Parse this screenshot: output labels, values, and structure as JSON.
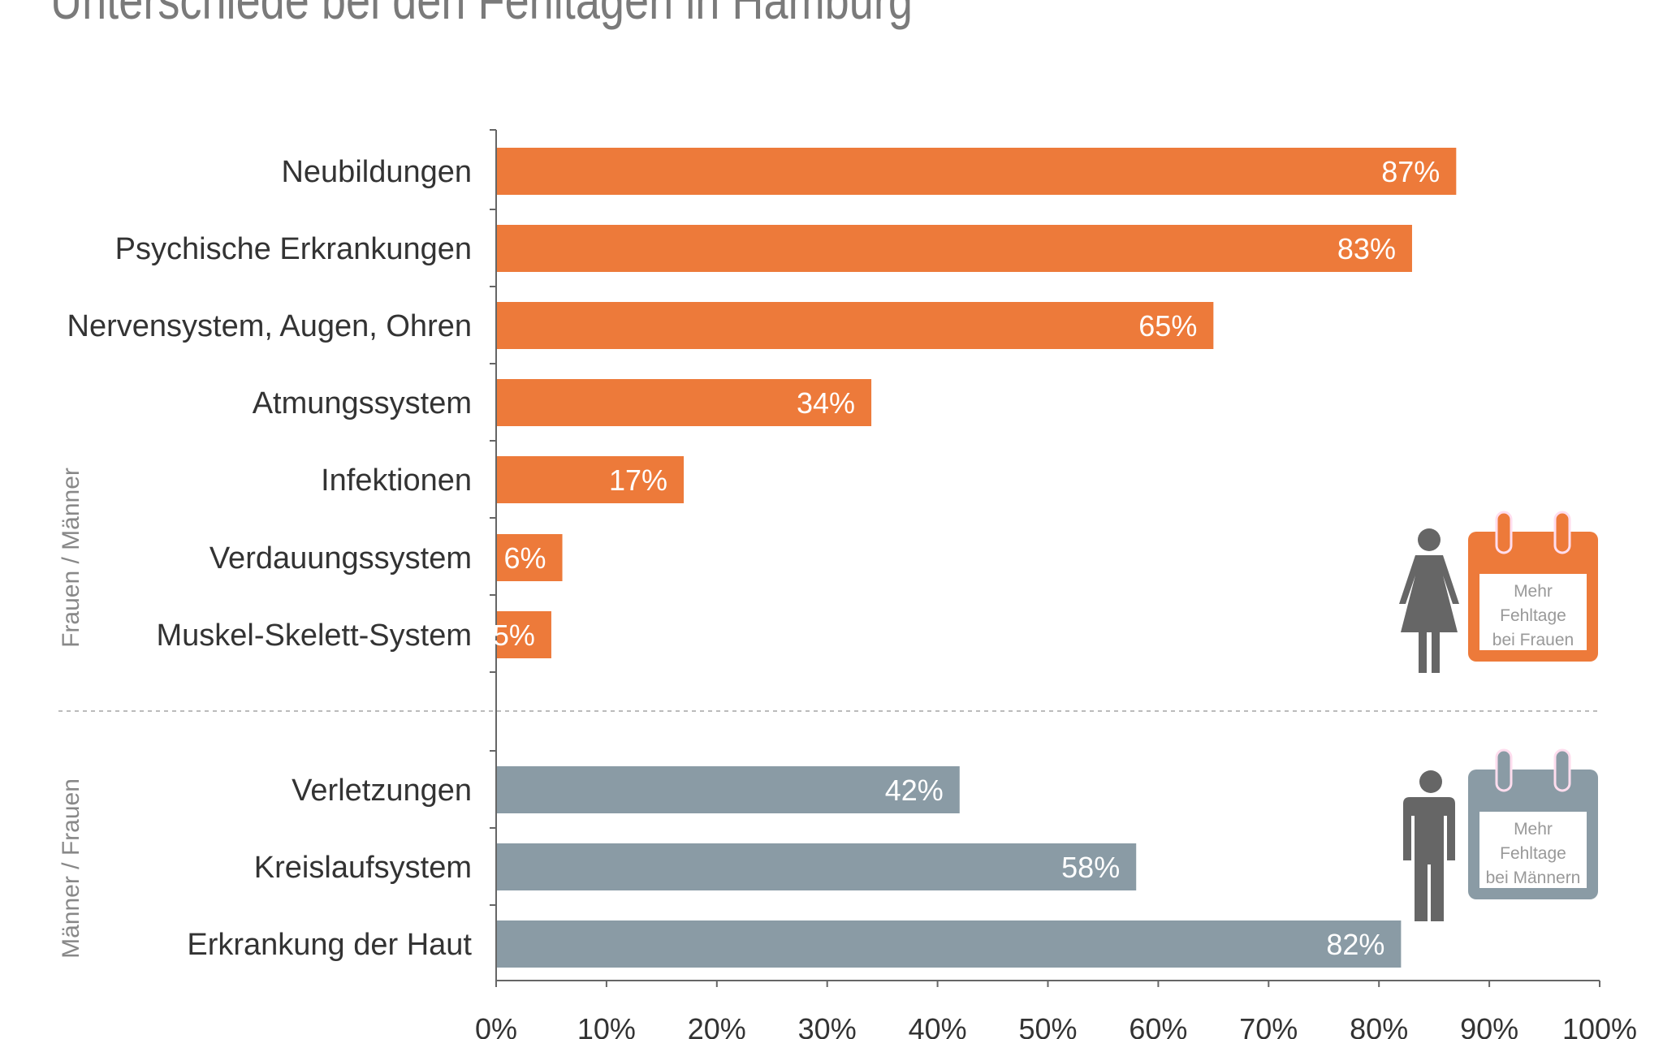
{
  "chart_data": {
    "type": "bar",
    "orientation": "horizontal",
    "title": "Unterschiede bei den Fehltagen in Hamburg",
    "xlim": [
      0,
      100
    ],
    "x_ticks": [
      "0%",
      "10%",
      "20%",
      "30%",
      "40%",
      "50%",
      "60%",
      "70%",
      "80%",
      "90%",
      "100%"
    ],
    "grid": false,
    "groups": [
      {
        "label": "Frauen / Männer",
        "color": "#ED7A3A",
        "legend": "Mehr Fehltage bei Frauen",
        "legend_lines": [
          "Mehr",
          "Fehltage",
          "bei Frauen"
        ],
        "categories": [
          "Neubildungen",
          "Psychische Erkrankungen",
          "Nervensystem, Augen, Ohren",
          "Atmungssystem",
          "Infektionen",
          "Verdauungssystem",
          "Muskel-Skelett-System"
        ],
        "values": [
          87,
          83,
          65,
          34,
          17,
          6,
          5
        ],
        "labels": [
          "87%",
          "83%",
          "65%",
          "34%",
          "17%",
          "6%",
          "5%"
        ]
      },
      {
        "label": "Männer / Frauen",
        "color": "#8A9BA5",
        "legend": "Mehr Fehltage bei Männern",
        "legend_lines": [
          "Mehr",
          "Fehltage",
          "bei Männern"
        ],
        "categories": [
          "Verletzungen",
          "Kreislaufsystem",
          "Erkrankung der Haut"
        ],
        "values": [
          42,
          58,
          82
        ],
        "labels": [
          "42%",
          "58%",
          "82%"
        ]
      }
    ]
  }
}
